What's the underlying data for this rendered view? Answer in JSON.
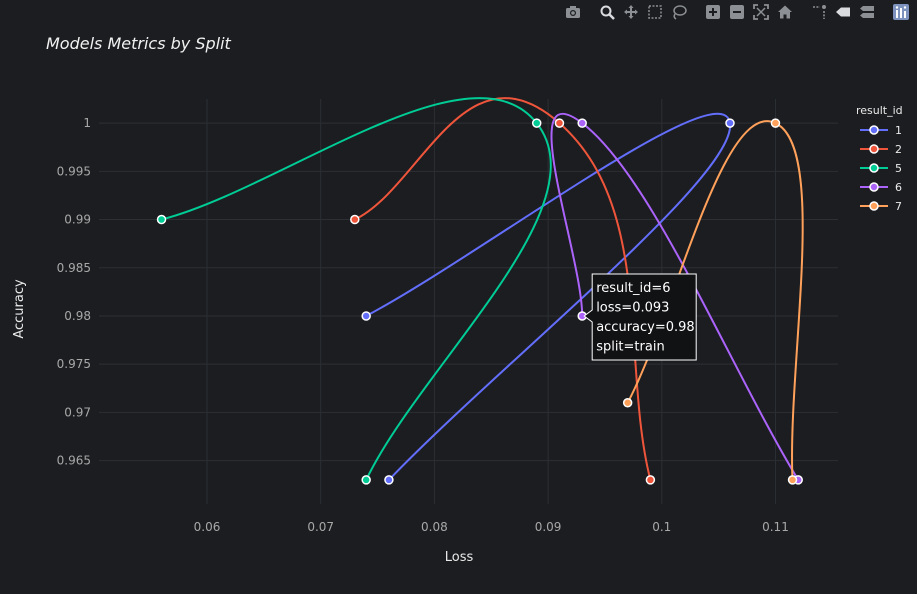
{
  "toolbar": {
    "buttons": [
      {
        "name": "camera-icon",
        "group": 0
      },
      {
        "name": "zoom-icon",
        "group": 1,
        "active": true
      },
      {
        "name": "pan-icon",
        "group": 1
      },
      {
        "name": "box-select-icon",
        "group": 1
      },
      {
        "name": "lasso-select-icon",
        "group": 1
      },
      {
        "name": "zoom-in-icon",
        "group": 2
      },
      {
        "name": "zoom-out-icon",
        "group": 2
      },
      {
        "name": "autoscale-icon",
        "group": 2
      },
      {
        "name": "reset-axes-icon",
        "group": 2
      },
      {
        "name": "spike-lines-icon",
        "group": 3
      },
      {
        "name": "hover-closest-icon",
        "group": 3
      },
      {
        "name": "hover-compare-icon",
        "group": 3
      },
      {
        "name": "plotly-logo-icon",
        "group": 4
      }
    ]
  },
  "chart_data": {
    "type": "line",
    "title": "Models Metrics by Split",
    "xlabel": "Loss",
    "ylabel": "Accuracy",
    "xlim": [
      0.0505,
      0.1155
    ],
    "ylim": [
      0.9605,
      1.0025
    ],
    "xticks": [
      0.06,
      0.07,
      0.08,
      0.09,
      0.1,
      0.11
    ],
    "xtick_labels": [
      "0.06",
      "0.07",
      "0.08",
      "0.09",
      "0.1",
      "0.11"
    ],
    "yticks": [
      0.965,
      0.97,
      0.975,
      0.98,
      0.985,
      0.99,
      0.995,
      1
    ],
    "ytick_labels": [
      "0.965",
      "0.97",
      "0.975",
      "0.98",
      "0.985",
      "0.99",
      "0.995",
      "1"
    ],
    "grid": true,
    "line_shape": "spline",
    "legend": {
      "title": "result_id",
      "position": "top-right"
    },
    "series": [
      {
        "name": "1",
        "color": "#636efa",
        "points": [
          {
            "x": 0.074,
            "y": 0.98
          },
          {
            "x": 0.106,
            "y": 1.0
          },
          {
            "x": 0.076,
            "y": 0.963
          }
        ]
      },
      {
        "name": "2",
        "color": "#ef553b",
        "points": [
          {
            "x": 0.073,
            "y": 0.99
          },
          {
            "x": 0.091,
            "y": 1.0
          },
          {
            "x": 0.099,
            "y": 0.963
          }
        ]
      },
      {
        "name": "5",
        "color": "#00cc96",
        "points": [
          {
            "x": 0.056,
            "y": 0.99
          },
          {
            "x": 0.089,
            "y": 1.0
          },
          {
            "x": 0.074,
            "y": 0.963
          }
        ]
      },
      {
        "name": "6",
        "color": "#ab63fa",
        "points": [
          {
            "x": 0.093,
            "y": 0.98
          },
          {
            "x": 0.093,
            "y": 1.0
          },
          {
            "x": 0.112,
            "y": 0.963
          }
        ]
      },
      {
        "name": "7",
        "color": "#ffa15a",
        "points": [
          {
            "x": 0.097,
            "y": 0.971
          },
          {
            "x": 0.11,
            "y": 1.0
          },
          {
            "x": 0.1115,
            "y": 0.963
          }
        ]
      }
    ],
    "hover": {
      "series": "6",
      "x": 0.093,
      "y": 0.98,
      "lines": [
        "result_id=6",
        "loss=0.093",
        "accuracy=0.98",
        "split=train"
      ]
    }
  }
}
